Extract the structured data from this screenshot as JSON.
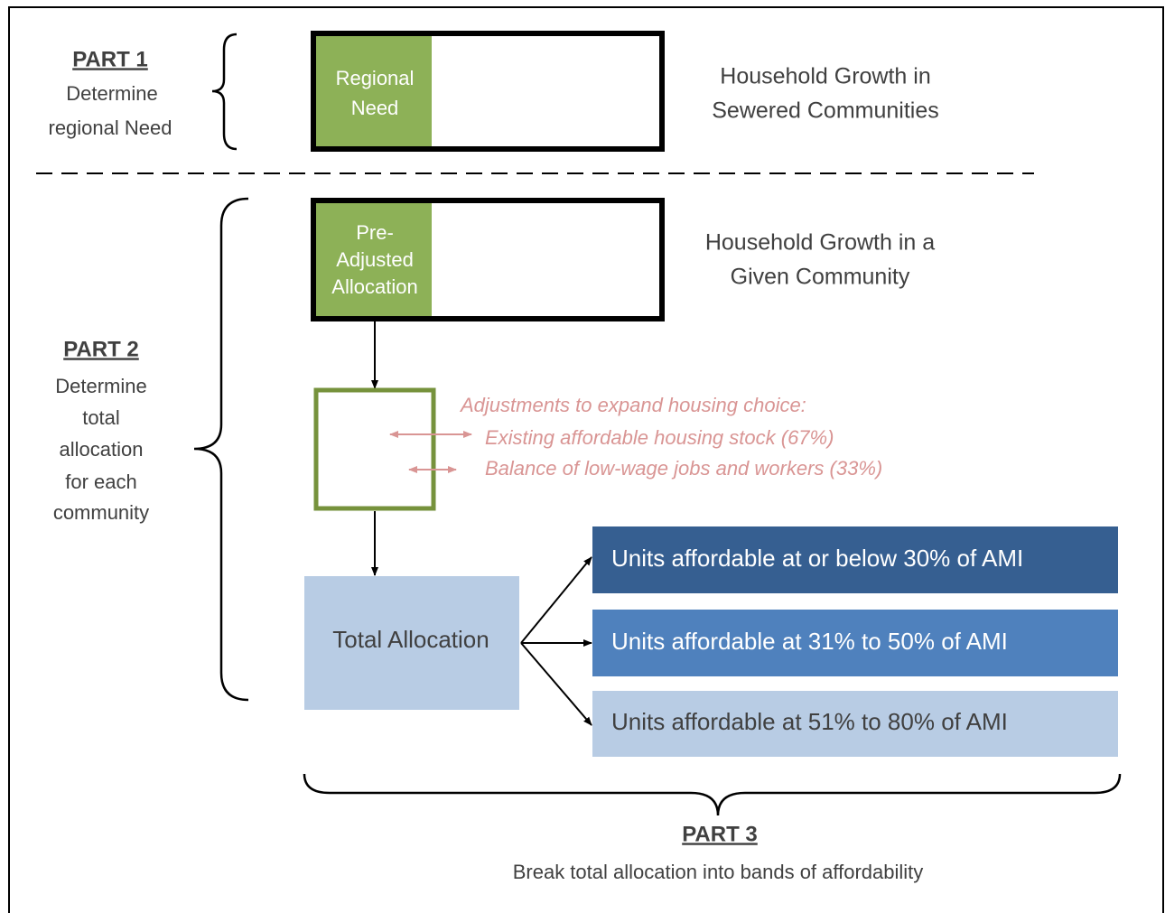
{
  "part1": {
    "heading": "PART 1",
    "lines": [
      "Determine",
      "regional Need"
    ],
    "box_lines": [
      "Regional",
      "Need"
    ],
    "description": [
      "Household Growth in",
      "Sewered Communities"
    ]
  },
  "part2": {
    "heading": "PART 2",
    "lines": [
      "Determine",
      "total",
      "allocation",
      "for each",
      "community"
    ],
    "box_lines": [
      "Pre-",
      "Adjusted",
      "Allocation"
    ],
    "description": [
      "Household Growth in a",
      "Given Community"
    ],
    "adjustments": {
      "title": "Adjustments to expand housing choice:",
      "items": [
        "Existing affordable housing stock (67%)",
        "Balance of low-wage jobs and workers (33%)"
      ]
    },
    "total": "Total Allocation"
  },
  "part3": {
    "heading": "PART 3",
    "description": "Break total allocation into bands of affordability",
    "bands": [
      "Units affordable at or below 30% of AMI",
      "Units affordable at 31% to 50% of AMI",
      "Units affordable at 51% to 80% of AMI"
    ]
  }
}
